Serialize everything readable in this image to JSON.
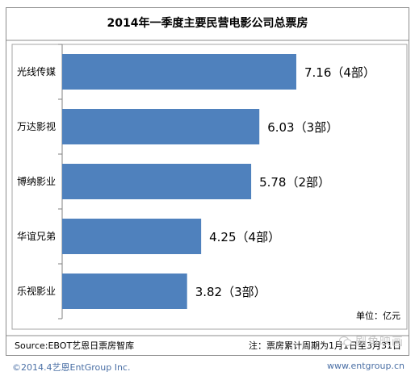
{
  "chart_data": {
    "type": "bar",
    "orientation": "horizontal",
    "title": "2014年一季度主要民营电影公司总票房",
    "categories": [
      "光线传媒",
      "万达影视",
      "博纳影业",
      "华谊兄弟",
      "乐视影业"
    ],
    "values": [
      7.16,
      6.03,
      5.78,
      4.25,
      3.82
    ],
    "data_labels": [
      "7.16（4部）",
      "6.03（3部）",
      "5.78（2部）",
      "4.25（4部）",
      "3.82（3部）"
    ],
    "unit_label": "单位：亿元",
    "xlim": [
      0,
      10
    ],
    "grid": false,
    "legend": "none",
    "bar_color": "#4f81bd"
  },
  "source": "Source:EBOT艺恩日票房智库",
  "note": "注：票房累计周期为1月1日至3月31日",
  "footer": {
    "copyright": "©2014.4艺恩EntGroup Inc.",
    "website": "www.entgroup.cn"
  },
  "watermark": {
    "text": "剧角映画",
    "icon": "wechat-icon"
  }
}
